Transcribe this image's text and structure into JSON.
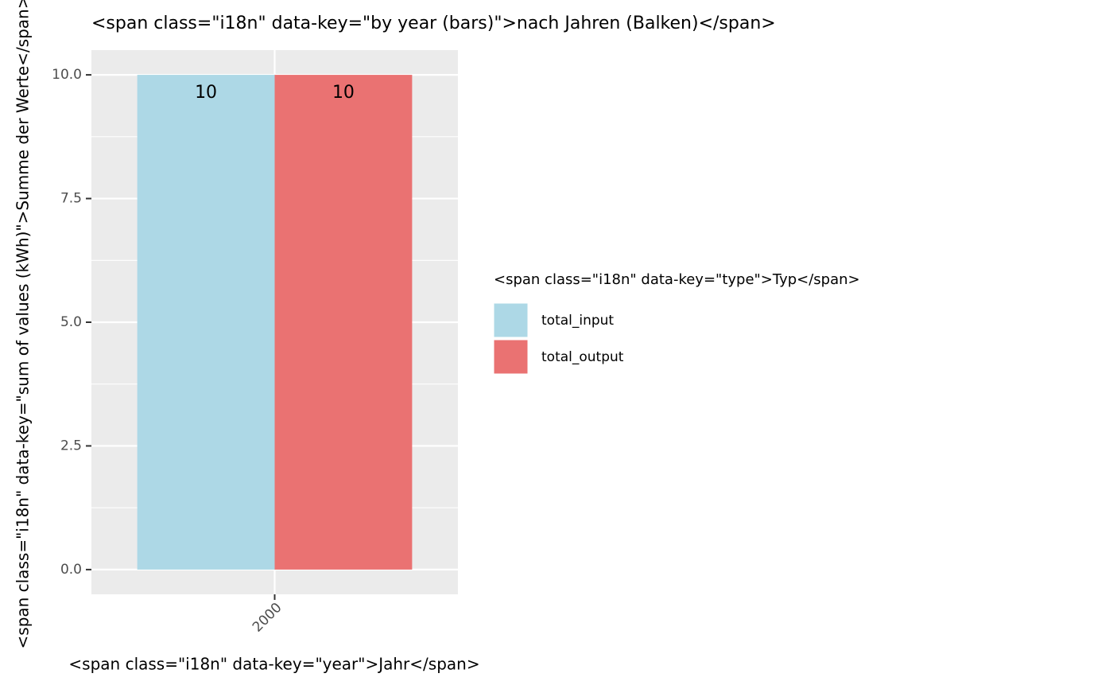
{
  "chart_data": {
    "type": "bar",
    "title": "<span class=\"i18n\" data-key=\"by year (bars)\">nach Jahren (Balken)</span>",
    "x_label": "<span class=\"i18n\" data-key=\"year\">Jahr</span>",
    "y_label": "<span class=\"i18n\" data-key=\"sum of values (kWh)\">Summe der Werte</span>",
    "legend_title": "<span class=\"i18n\" data-key=\"type\">Typ</span>",
    "categories": [
      "2000"
    ],
    "series": [
      {
        "name": "total_input",
        "color": "#add8e6",
        "values": [
          10
        ]
      },
      {
        "name": "total_output",
        "color": "#ea7272",
        "values": [
          10
        ]
      }
    ],
    "ylim": [
      -0.5,
      10.5
    ],
    "yticks": [
      {
        "value": 0,
        "label": "0.0"
      },
      2.5,
      {
        "value": 5,
        "label": "5.0"
      },
      7.5,
      {
        "value": 10,
        "label": "10.0"
      }
    ],
    "grid": true,
    "legend_position": "right"
  }
}
